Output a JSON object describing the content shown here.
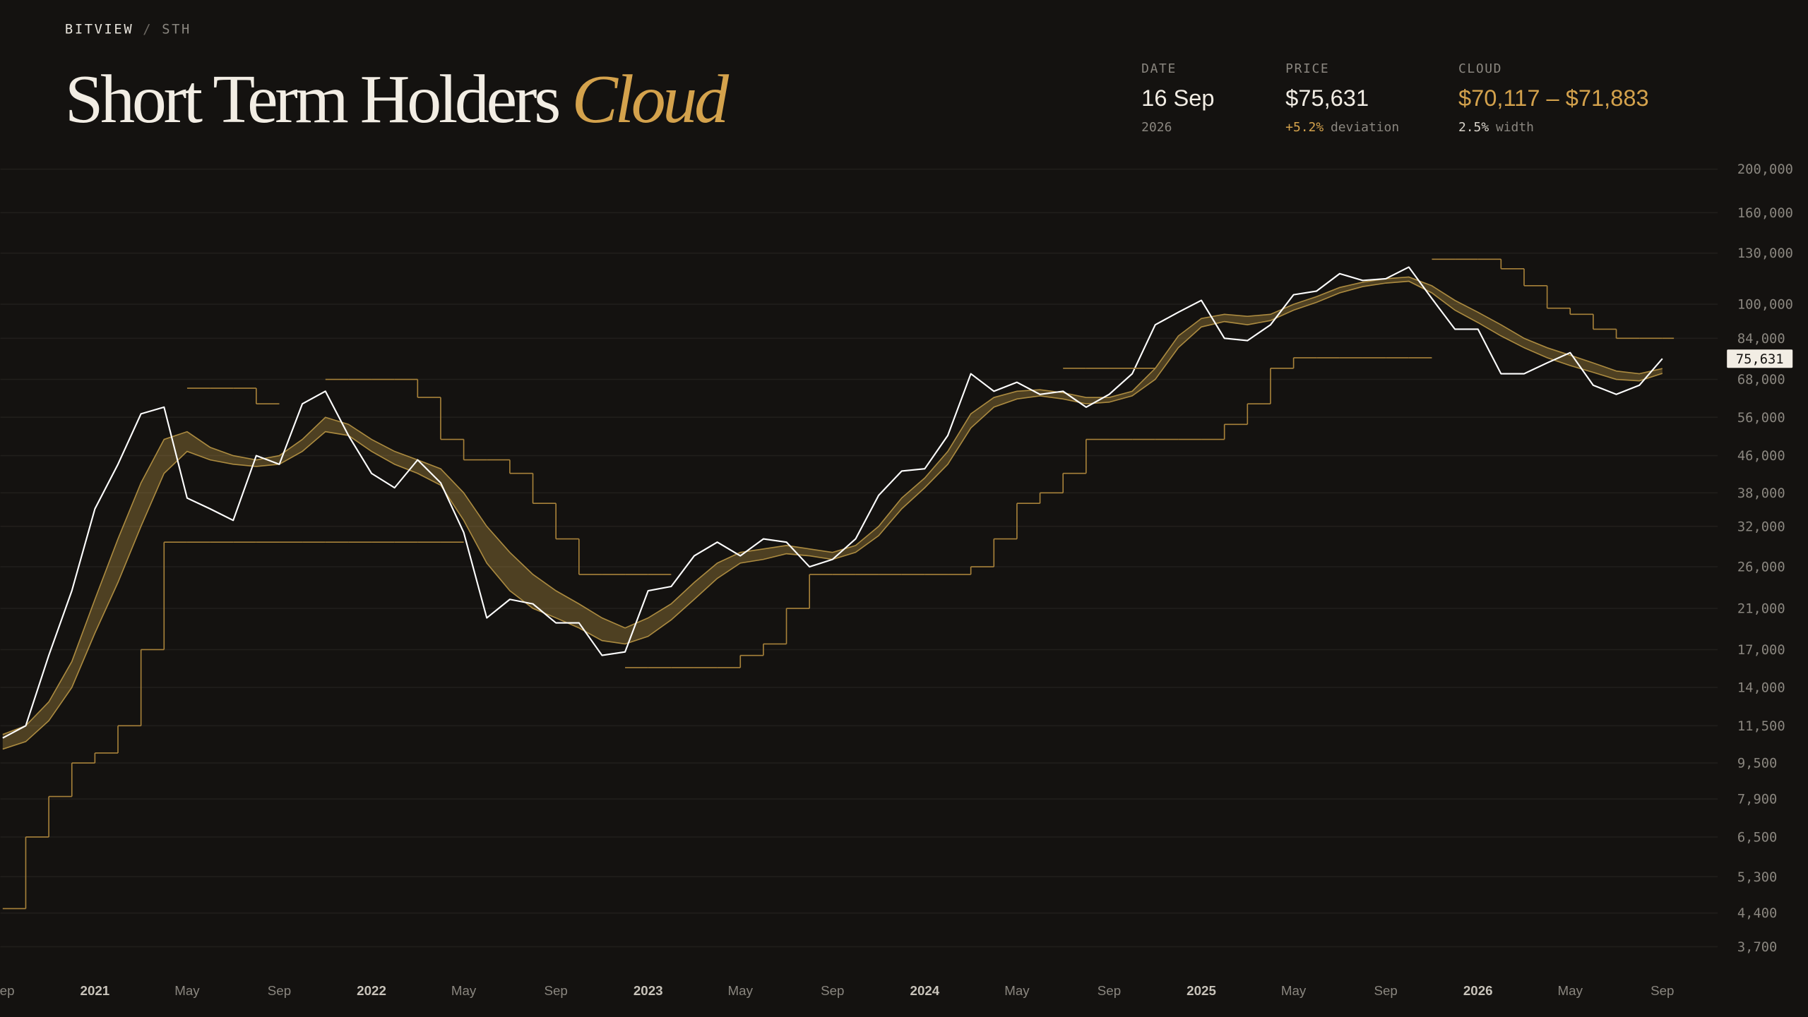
{
  "header": {
    "breadcrumb": [
      "BITVIEW",
      "/",
      "STH"
    ],
    "title": "Short Term Holders",
    "title_accent": "Cloud"
  },
  "stats": [
    {
      "label": "DATE",
      "value": "16 Sep",
      "sub": [
        "2026"
      ]
    },
    {
      "label": "PRICE",
      "value": "$75,631",
      "sub": [
        "+5.2%",
        "deviation"
      ]
    },
    {
      "label": "CLOUD",
      "value": "$70,117 – $71,883",
      "sub": [
        "2.5%",
        "width"
      ]
    }
  ],
  "chart_data": {
    "type": "line",
    "log_scale": true,
    "grid": true,
    "x": [
      "2020-09",
      "2020-10",
      "2020-11",
      "2020-12",
      "2021-01",
      "2021-02",
      "2021-03",
      "2021-04",
      "2021-05",
      "2021-06",
      "2021-07",
      "2021-08",
      "2021-09",
      "2021-10",
      "2021-11",
      "2021-12",
      "2022-01",
      "2022-02",
      "2022-03",
      "2022-04",
      "2022-05",
      "2022-06",
      "2022-07",
      "2022-08",
      "2022-09",
      "2022-10",
      "2022-11",
      "2022-12",
      "2023-01",
      "2023-02",
      "2023-03",
      "2023-04",
      "2023-05",
      "2023-06",
      "2023-07",
      "2023-08",
      "2023-09",
      "2023-10",
      "2023-11",
      "2023-12",
      "2024-01",
      "2024-02",
      "2024-03",
      "2024-04",
      "2024-05",
      "2024-06",
      "2024-07",
      "2024-08",
      "2024-09",
      "2024-10",
      "2024-11",
      "2024-12",
      "2025-01",
      "2025-02",
      "2025-03",
      "2025-04",
      "2025-05",
      "2025-06",
      "2025-07",
      "2025-08",
      "2025-09",
      "2025-10",
      "2025-11",
      "2025-12",
      "2026-01",
      "2026-02",
      "2026-03",
      "2026-04",
      "2026-05",
      "2026-06",
      "2026-07",
      "2026-08",
      "2026-09"
    ],
    "xlim": [
      "2020-09",
      "2026-11"
    ],
    "xticks": [
      {
        "value": "2020-09",
        "label": "Sep"
      },
      {
        "value": "2021-01",
        "label": "2021"
      },
      {
        "value": "2021-05",
        "label": "May"
      },
      {
        "value": "2021-09",
        "label": "Sep"
      },
      {
        "value": "2022-01",
        "label": "2022"
      },
      {
        "value": "2022-05",
        "label": "May"
      },
      {
        "value": "2022-09",
        "label": "Sep"
      },
      {
        "value": "2023-01",
        "label": "2023"
      },
      {
        "value": "2023-05",
        "label": "May"
      },
      {
        "value": "2023-09",
        "label": "Sep"
      },
      {
        "value": "2024-01",
        "label": "2024"
      },
      {
        "value": "2024-05",
        "label": "May"
      },
      {
        "value": "2024-09",
        "label": "Sep"
      },
      {
        "value": "2025-01",
        "label": "2025"
      },
      {
        "value": "2025-05",
        "label": "May"
      },
      {
        "value": "2025-09",
        "label": "Sep"
      },
      {
        "value": "2026-01",
        "label": "2026"
      },
      {
        "value": "2026-05",
        "label": "May"
      },
      {
        "value": "2026-09",
        "label": "Sep"
      }
    ],
    "ylim": [
      3230,
      221000
    ],
    "yticks": [
      {
        "value": 200000,
        "label": "200,000"
      },
      {
        "value": 160000,
        "label": "160,000"
      },
      {
        "value": 130000,
        "label": "130,000"
      },
      {
        "value": 100000,
        "label": "100,000"
      },
      {
        "value": 84000,
        "label": "84,000"
      },
      {
        "value": 68000,
        "label": "68,000"
      },
      {
        "value": 56000,
        "label": "56,000"
      },
      {
        "value": 46000,
        "label": "46,000"
      },
      {
        "value": 38000,
        "label": "38,000"
      },
      {
        "value": 32000,
        "label": "32,000"
      },
      {
        "value": 26000,
        "label": "26,000"
      },
      {
        "value": 21000,
        "label": "21,000"
      },
      {
        "value": 17000,
        "label": "17,000"
      },
      {
        "value": 14000,
        "label": "14,000"
      },
      {
        "value": 11500,
        "label": "11,500"
      },
      {
        "value": 9500,
        "label": "9,500"
      },
      {
        "value": 7900,
        "label": "7,900"
      },
      {
        "value": 6500,
        "label": "6,500"
      },
      {
        "value": 5300,
        "label": "5,300"
      },
      {
        "value": 4400,
        "label": "4,400"
      },
      {
        "value": 3700,
        "label": "3,700"
      }
    ],
    "cloud": {
      "color": "#c9a24a",
      "upper": [
        11000,
        11500,
        13000,
        16000,
        22000,
        30000,
        40000,
        50000,
        52000,
        48000,
        46000,
        45000,
        46000,
        50000,
        56000,
        54000,
        50000,
        47000,
        45000,
        43000,
        38000,
        32000,
        28000,
        25000,
        23000,
        21500,
        20000,
        19000,
        20000,
        21500,
        24000,
        26500,
        28000,
        28500,
        29000,
        28500,
        28000,
        29000,
        32000,
        37000,
        41000,
        47000,
        57000,
        62000,
        64000,
        64500,
        63500,
        62000,
        62000,
        64000,
        72000,
        85000,
        93000,
        95000,
        94000,
        95000,
        100000,
        104000,
        109000,
        112000,
        114000,
        115000,
        110000,
        102000,
        96000,
        90000,
        84000,
        80000,
        77000,
        74000,
        71000,
        70000,
        71883
      ],
      "lower": [
        10200,
        10600,
        11800,
        14000,
        18500,
        24000,
        32000,
        42000,
        47000,
        45000,
        44000,
        43500,
        44000,
        47000,
        52000,
        51000,
        47000,
        44000,
        42000,
        39500,
        33000,
        26500,
        23000,
        21000,
        20000,
        19000,
        17800,
        17500,
        18200,
        19800,
        22000,
        24500,
        26500,
        27000,
        27800,
        27500,
        27000,
        28000,
        30500,
        35000,
        39000,
        44000,
        53000,
        59000,
        61500,
        62500,
        61500,
        60000,
        60500,
        62500,
        68000,
        80000,
        89000,
        91500,
        90000,
        92000,
        97000,
        101000,
        106000,
        109500,
        111500,
        112500,
        106000,
        97000,
        91000,
        85000,
        80000,
        76000,
        73000,
        70500,
        68000,
        67500,
        70117
      ]
    },
    "series": [
      {
        "color": "#ffffff",
        "style": "line",
        "values": [
          10800,
          11500,
          16500,
          23000,
          35000,
          44000,
          57000,
          59000,
          37000,
          35000,
          33000,
          46000,
          44000,
          60000,
          64000,
          51000,
          42000,
          39000,
          45000,
          40000,
          31000,
          20000,
          22000,
          21500,
          19500,
          19500,
          16500,
          16800,
          23000,
          23500,
          27500,
          29500,
          27500,
          30000,
          29500,
          26000,
          27000,
          30000,
          37500,
          42500,
          43000,
          51000,
          70000,
          64000,
          67000,
          63000,
          64000,
          59000,
          63000,
          70000,
          90000,
          96000,
          102000,
          84000,
          83000,
          90000,
          105000,
          107000,
          117000,
          113000,
          114000,
          121000,
          103000,
          88000,
          88000,
          70000,
          70000,
          74000,
          78000,
          66000,
          63000,
          66000,
          75631
        ]
      },
      {
        "color": "#a8823a",
        "style": "step",
        "values": [
          4500,
          6500,
          8000,
          9500,
          10000,
          11500,
          17000,
          29500,
          29500,
          29500,
          29500,
          29500,
          29500,
          29500,
          29500,
          29500,
          29500,
          29500,
          29500,
          29500,
          null,
          null,
          null,
          null,
          null,
          null,
          null,
          15500,
          15500,
          15500,
          15500,
          15500,
          16500,
          17500,
          21000,
          25000,
          25000,
          25000,
          25000,
          25000,
          25000,
          25000,
          26000,
          30000,
          36000,
          38000,
          42000,
          50000,
          50000,
          50000,
          50000,
          50000,
          50000,
          54000,
          60000,
          72000,
          76000,
          76000,
          76000,
          76000,
          76000,
          76000,
          null,
          null,
          null,
          null,
          null,
          null,
          null,
          null,
          null,
          null,
          null
        ]
      },
      {
        "color": "#a8823a",
        "style": "step",
        "values": [
          null,
          null,
          null,
          null,
          null,
          null,
          null,
          null,
          65000,
          65000,
          65000,
          60000,
          null,
          null,
          68000,
          68000,
          68000,
          68000,
          62000,
          50000,
          45000,
          45000,
          42000,
          36000,
          30000,
          25000,
          25000,
          25000,
          25000,
          null,
          null,
          null,
          null,
          null,
          null,
          null,
          null,
          null,
          null,
          null,
          null,
          null,
          null,
          null,
          null,
          null,
          72000,
          72000,
          72000,
          72000,
          null,
          null,
          null,
          null,
          null,
          null,
          null,
          null,
          null,
          null,
          null,
          null,
          126000,
          126000,
          126000,
          120000,
          110000,
          98000,
          95000,
          88000,
          84000,
          84000,
          84000
        ]
      }
    ],
    "price_tag": "75,631"
  }
}
